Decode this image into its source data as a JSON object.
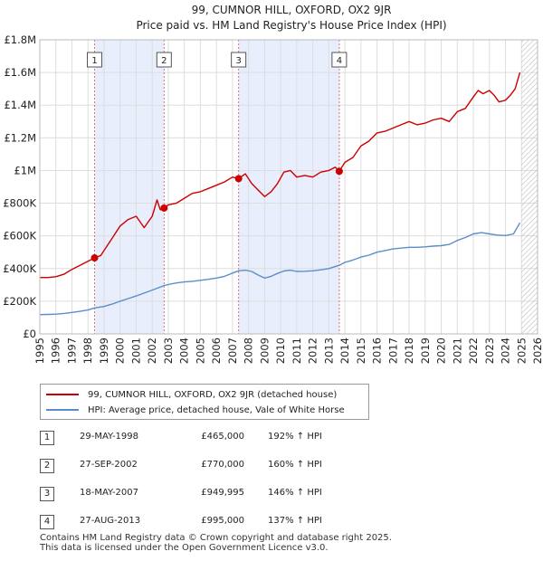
{
  "chart_data": {
    "type": "line",
    "title": "99, CUMNOR HILL, OXFORD, OX2 9JR",
    "subtitle": "Price paid vs. HM Land Registry's House Price Index (HPI)",
    "xlim": [
      1995,
      2026
    ],
    "ylim": [
      0,
      1800000
    ],
    "x_ticks": [
      "1995",
      "1996",
      "1997",
      "1998",
      "1999",
      "2000",
      "2001",
      "2002",
      "2003",
      "2004",
      "2005",
      "2006",
      "2007",
      "2008",
      "2009",
      "2010",
      "2011",
      "2012",
      "2013",
      "2014",
      "2015",
      "2016",
      "2017",
      "2018",
      "2019",
      "2020",
      "2021",
      "2022",
      "2023",
      "2024",
      "2025",
      "2026"
    ],
    "y_ticks": [
      {
        "value": 0,
        "label": "£0"
      },
      {
        "value": 200000,
        "label": "£200K"
      },
      {
        "value": 400000,
        "label": "£400K"
      },
      {
        "value": 600000,
        "label": "£600K"
      },
      {
        "value": 800000,
        "label": "£800K"
      },
      {
        "value": 1000000,
        "label": "£1M"
      },
      {
        "value": 1200000,
        "label": "£1.2M"
      },
      {
        "value": 1400000,
        "label": "£1.4M"
      },
      {
        "value": 1600000,
        "label": "£1.6M"
      },
      {
        "value": 1800000,
        "label": "£1.8M"
      }
    ],
    "grid": true,
    "shaded_spans": [
      [
        1998.41,
        2002.74
      ],
      [
        2007.38,
        2013.65
      ]
    ],
    "hatched_from": 2025.0,
    "series": [
      {
        "name": "99, CUMNOR HILL, OXFORD, OX2 9JR (detached house)",
        "color": "#cc0000",
        "x": [
          1995.0,
          1995.5,
          1996.0,
          1996.5,
          1997.0,
          1997.5,
          1998.0,
          1998.41,
          1998.8,
          1999.2,
          1999.6,
          2000.0,
          2000.5,
          2001.0,
          2001.5,
          2002.0,
          2002.3,
          2002.5,
          2002.74,
          2003.0,
          2003.5,
          2004.0,
          2004.5,
          2005.0,
          2005.5,
          2006.0,
          2006.5,
          2007.0,
          2007.38,
          2007.8,
          2008.2,
          2008.6,
          2009.0,
          2009.4,
          2009.8,
          2010.2,
          2010.6,
          2011.0,
          2011.5,
          2012.0,
          2012.5,
          2013.0,
          2013.4,
          2013.65,
          2014.0,
          2014.5,
          2015.0,
          2015.5,
          2016.0,
          2016.5,
          2017.0,
          2017.5,
          2018.0,
          2018.5,
          2019.0,
          2019.5,
          2020.0,
          2020.5,
          2021.0,
          2021.5,
          2022.0,
          2022.3,
          2022.6,
          2023.0,
          2023.3,
          2023.6,
          2024.0,
          2024.3,
          2024.6,
          2024.9
        ],
        "values": [
          345000,
          345000,
          350000,
          365000,
          395000,
          420000,
          445000,
          465000,
          480000,
          540000,
          600000,
          660000,
          700000,
          720000,
          650000,
          720000,
          820000,
          760000,
          770000,
          790000,
          800000,
          830000,
          860000,
          870000,
          890000,
          910000,
          930000,
          960000,
          950000,
          980000,
          920000,
          880000,
          840000,
          870000,
          920000,
          990000,
          1000000,
          960000,
          970000,
          960000,
          990000,
          1000000,
          1020000,
          995000,
          1050000,
          1080000,
          1150000,
          1180000,
          1230000,
          1240000,
          1260000,
          1280000,
          1300000,
          1280000,
          1290000,
          1310000,
          1320000,
          1300000,
          1360000,
          1380000,
          1450000,
          1490000,
          1470000,
          1490000,
          1460000,
          1420000,
          1430000,
          1460000,
          1500000,
          1600000
        ]
      },
      {
        "name": "HPI: Average price, detached house, Vale of White Horse",
        "color": "#5b8ec9",
        "x": [
          1995.0,
          1995.5,
          1996.0,
          1996.5,
          1997.0,
          1997.5,
          1998.0,
          1998.41,
          1999.0,
          1999.5,
          2000.0,
          2000.5,
          2001.0,
          2001.5,
          2002.0,
          2002.74,
          2003.0,
          2003.5,
          2004.0,
          2004.5,
          2005.0,
          2005.5,
          2006.0,
          2006.5,
          2007.0,
          2007.38,
          2007.8,
          2008.2,
          2008.6,
          2009.0,
          2009.4,
          2009.8,
          2010.2,
          2010.6,
          2011.0,
          2011.5,
          2012.0,
          2012.5,
          2013.0,
          2013.65,
          2014.0,
          2014.5,
          2015.0,
          2015.5,
          2016.0,
          2016.5,
          2017.0,
          2017.5,
          2018.0,
          2018.5,
          2019.0,
          2019.5,
          2020.0,
          2020.5,
          2021.0,
          2021.5,
          2022.0,
          2022.5,
          2023.0,
          2023.5,
          2024.0,
          2024.5,
          2024.9
        ],
        "values": [
          118000,
          119000,
          121000,
          125000,
          131000,
          138000,
          146000,
          159000,
          168000,
          182000,
          200000,
          216000,
          232000,
          250000,
          268000,
          296000,
          302000,
          312000,
          318000,
          322000,
          328000,
          334000,
          342000,
          352000,
          372000,
          386000,
          390000,
          382000,
          360000,
          342000,
          352000,
          370000,
          385000,
          390000,
          382000,
          383000,
          386000,
          392000,
          400000,
          420000,
          438000,
          452000,
          470000,
          482000,
          500000,
          510000,
          520000,
          525000,
          530000,
          530000,
          533000,
          537000,
          540000,
          548000,
          572000,
          590000,
          612000,
          620000,
          612000,
          605000,
          602000,
          612000,
          680000
        ]
      }
    ],
    "markers": [
      {
        "label": "1",
        "x": 1998.41,
        "value": 465000
      },
      {
        "label": "2",
        "x": 2002.74,
        "value": 770000
      },
      {
        "label": "3",
        "x": 2007.38,
        "value": 949995
      },
      {
        "label": "4",
        "x": 2013.65,
        "value": 995000
      }
    ]
  },
  "legend": {
    "items": [
      {
        "label": "99, CUMNOR HILL, OXFORD, OX2 9JR (detached house)",
        "color": "#cc0000"
      },
      {
        "label": "HPI: Average price, detached house, Vale of White Horse",
        "color": "#5b8ec9"
      }
    ]
  },
  "sales": [
    {
      "num": "1",
      "date": "29-MAY-1998",
      "price": "£465,000",
      "hpi": "192% ↑ HPI"
    },
    {
      "num": "2",
      "date": "27-SEP-2002",
      "price": "£770,000",
      "hpi": "160% ↑ HPI"
    },
    {
      "num": "3",
      "date": "18-MAY-2007",
      "price": "£949,995",
      "hpi": "146% ↑ HPI"
    },
    {
      "num": "4",
      "date": "27-AUG-2013",
      "price": "£995,000",
      "hpi": "137% ↑ HPI"
    }
  ],
  "footer": {
    "line1": "Contains HM Land Registry data © Crown copyright and database right 2025.",
    "line2": "This data is licensed under the Open Government Licence v3.0."
  }
}
